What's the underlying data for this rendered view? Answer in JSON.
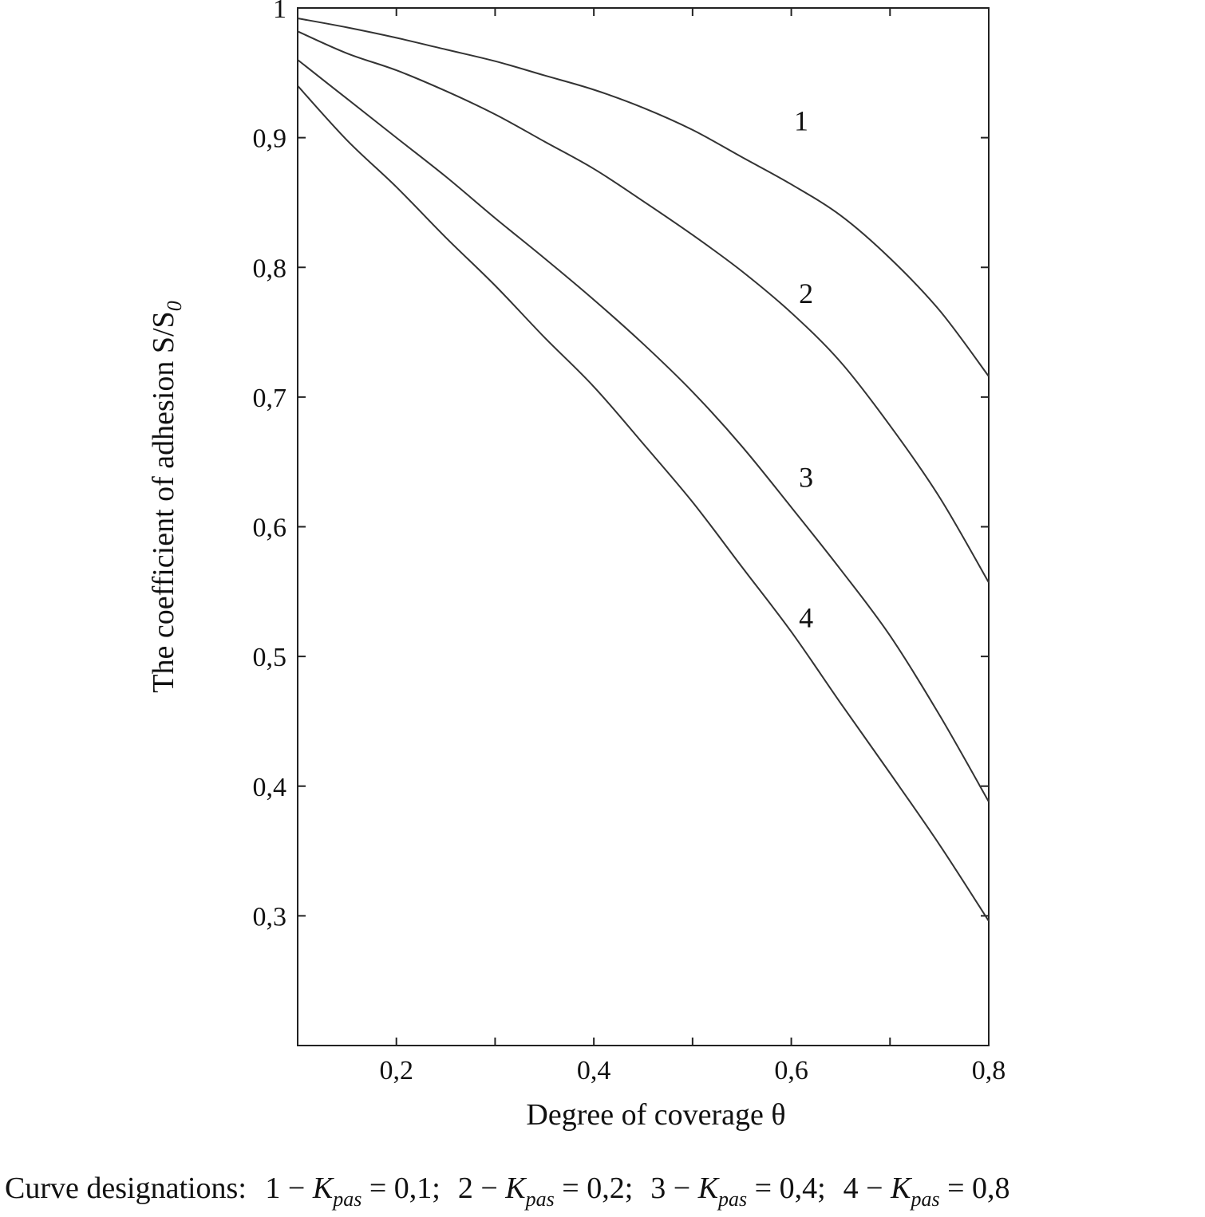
{
  "chart_data": {
    "type": "line",
    "xlabel": "Degree of coverage θ",
    "ylabel": "The coefficient of adhesion S/S",
    "ylabel_subscript": "0",
    "xlim": [
      0.1,
      0.8
    ],
    "ylim": [
      0.2,
      1.0
    ],
    "grid": false,
    "x_ticks": [
      {
        "value": 0.2,
        "label": "0,2"
      },
      {
        "value": 0.3,
        "label": ""
      },
      {
        "value": 0.4,
        "label": "0,4"
      },
      {
        "value": 0.5,
        "label": ""
      },
      {
        "value": 0.6,
        "label": "0,6"
      },
      {
        "value": 0.7,
        "label": ""
      },
      {
        "value": 0.8,
        "label": "0,8"
      }
    ],
    "y_ticks": [
      {
        "value": 0.3,
        "label": "0,3"
      },
      {
        "value": 0.4,
        "label": "0,4"
      },
      {
        "value": 0.5,
        "label": "0,5"
      },
      {
        "value": 0.6,
        "label": "0,6"
      },
      {
        "value": 0.7,
        "label": "0,7"
      },
      {
        "value": 0.8,
        "label": "0,8"
      },
      {
        "value": 0.9,
        "label": "0,9"
      },
      {
        "value": 1.0,
        "label": "1"
      }
    ],
    "x": [
      0.1,
      0.15,
      0.2,
      0.25,
      0.3,
      0.35,
      0.4,
      0.45,
      0.5,
      0.55,
      0.6,
      0.65,
      0.7,
      0.75,
      0.8
    ],
    "series": [
      {
        "label": "1",
        "label_at": [
          0.61,
          0.913
        ],
        "values": [
          0.992,
          0.985,
          0.977,
          0.968,
          0.959,
          0.948,
          0.937,
          0.923,
          0.906,
          0.885,
          0.864,
          0.84,
          0.807,
          0.767,
          0.716
        ]
      },
      {
        "label": "2",
        "label_at": [
          0.615,
          0.78
        ],
        "values": [
          0.982,
          0.965,
          0.952,
          0.936,
          0.918,
          0.897,
          0.876,
          0.851,
          0.825,
          0.797,
          0.765,
          0.727,
          0.678,
          0.623,
          0.557
        ]
      },
      {
        "label": "3",
        "label_at": [
          0.615,
          0.638
        ],
        "values": [
          0.96,
          0.93,
          0.9,
          0.87,
          0.838,
          0.807,
          0.775,
          0.741,
          0.704,
          0.662,
          0.615,
          0.567,
          0.516,
          0.455,
          0.388
        ]
      },
      {
        "label": "4",
        "label_at": [
          0.615,
          0.53
        ],
        "values": [
          0.94,
          0.898,
          0.862,
          0.823,
          0.786,
          0.746,
          0.708,
          0.664,
          0.619,
          0.569,
          0.519,
          0.464,
          0.41,
          0.355,
          0.296
        ]
      }
    ]
  },
  "caption": {
    "prefix": "Curve designations:",
    "items": [
      {
        "num": "1",
        "dash": "−",
        "k": "K",
        "sub": "pas",
        "eq": "=",
        "value": "0,1",
        "sep": ";"
      },
      {
        "num": "2",
        "dash": "−",
        "k": "K",
        "sub": "pas",
        "eq": "=",
        "value": "0,2",
        "sep": ";"
      },
      {
        "num": "3",
        "dash": "−",
        "k": "K",
        "sub": "pas",
        "eq": "=",
        "value": "0,4",
        "sep": ";"
      },
      {
        "num": "4",
        "dash": "−",
        "k": "K",
        "sub": "pas",
        "eq": "=",
        "value": "0,8",
        "sep": ""
      }
    ]
  }
}
